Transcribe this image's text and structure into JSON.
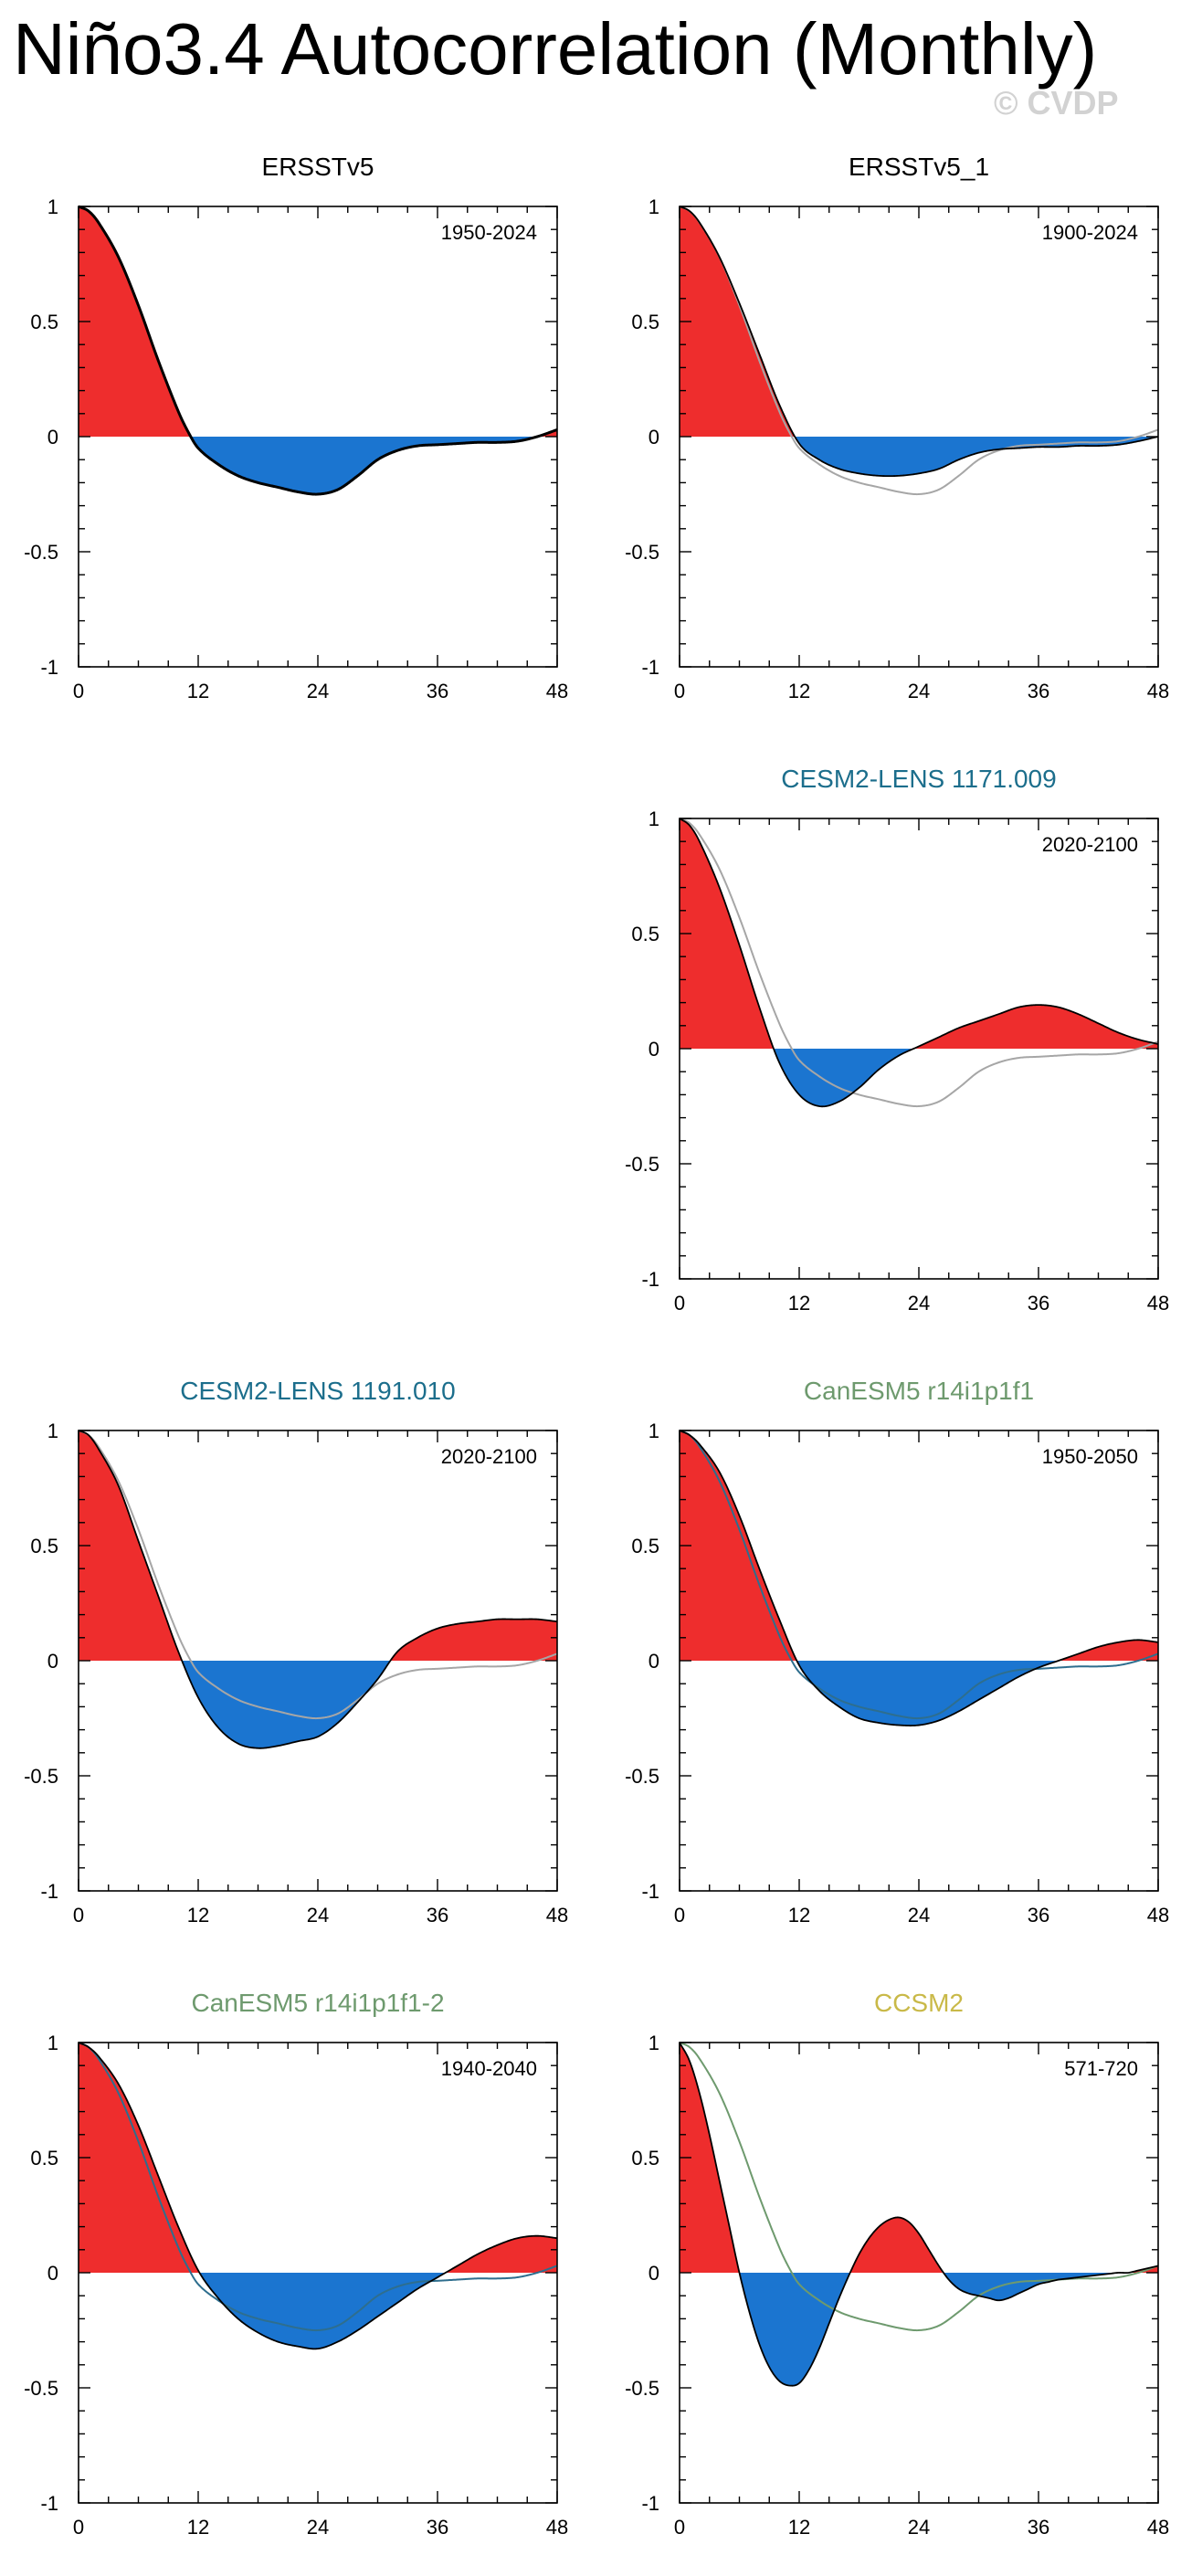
{
  "title": "Niño3.4 Autocorrelation (Monthly)",
  "watermark": "© CVDP",
  "colors": {
    "positive_fill": "#ee2d2d",
    "negative_fill": "#1b75d0",
    "reference_line": "#a6a6a6",
    "model_line": "#000000"
  },
  "chart_data": [
    {
      "type": "area",
      "title": "ERSSTv5",
      "title_color": "#000000",
      "period": "1950-2024",
      "xlabel": "",
      "ylabel": "",
      "xlim": [
        0,
        48
      ],
      "ylim": [
        -1,
        1
      ],
      "xticks": [
        "0",
        "12",
        "24",
        "36",
        "48"
      ],
      "yticks": [
        "1",
        "0.5",
        "0",
        "-0.5",
        "-1"
      ],
      "line_width": 2.5,
      "reference": null,
      "series": [
        {
          "name": "ERSSTv5",
          "x": [
            0,
            1,
            2,
            4,
            6,
            8,
            10,
            11,
            12,
            14,
            16,
            18,
            20,
            22,
            24,
            26,
            28,
            30,
            32,
            34,
            36,
            38,
            40,
            42,
            44,
            46,
            48
          ],
          "values": [
            1.0,
            0.98,
            0.93,
            0.78,
            0.57,
            0.33,
            0.11,
            0.02,
            -0.05,
            -0.12,
            -0.17,
            -0.2,
            -0.22,
            -0.24,
            -0.25,
            -0.23,
            -0.17,
            -0.1,
            -0.06,
            -0.04,
            -0.035,
            -0.03,
            -0.025,
            -0.025,
            -0.02,
            0.0,
            0.03
          ]
        }
      ]
    },
    {
      "type": "area",
      "title": "ERSSTv5_1",
      "title_color": "#000000",
      "period": "1900-2024",
      "xlabel": "",
      "ylabel": "",
      "xlim": [
        0,
        48
      ],
      "ylim": [
        -1,
        1
      ],
      "xticks": [
        "0",
        "12",
        "24",
        "36",
        "48"
      ],
      "yticks": [
        "1",
        "0.5",
        "0",
        "-0.5",
        "-1"
      ],
      "line_width": 1.5,
      "reference": {
        "name": "ERSSTv5",
        "color": "#a6a6a6"
      },
      "series": [
        {
          "name": "ERSSTv5_1",
          "x": [
            0,
            1,
            2,
            4,
            6,
            8,
            10,
            12,
            14,
            16,
            18,
            20,
            22,
            24,
            26,
            28,
            30,
            32,
            34,
            36,
            38,
            40,
            42,
            44,
            46,
            48
          ],
          "values": [
            1.0,
            0.98,
            0.93,
            0.78,
            0.58,
            0.36,
            0.14,
            -0.03,
            -0.1,
            -0.14,
            -0.16,
            -0.17,
            -0.17,
            -0.16,
            -0.14,
            -0.1,
            -0.07,
            -0.055,
            -0.05,
            -0.045,
            -0.045,
            -0.04,
            -0.04,
            -0.035,
            -0.02,
            0.0
          ]
        }
      ]
    },
    {
      "type": "area",
      "title": "CESM2-LENS 1171.009",
      "title_color": "#1c6e8c",
      "period": "2020-2100",
      "xlabel": "",
      "ylabel": "",
      "xlim": [
        0,
        48
      ],
      "ylim": [
        -1,
        1
      ],
      "xticks": [
        "0",
        "12",
        "24",
        "36",
        "48"
      ],
      "yticks": [
        "1",
        "0.5",
        "0",
        "-0.5",
        "-1"
      ],
      "line_width": 1.5,
      "reference": {
        "name": "ERSSTv5",
        "color": "#a6a6a6"
      },
      "series": [
        {
          "name": "CESM2-LENS 1171.009",
          "x": [
            0,
            1,
            2,
            4,
            6,
            8,
            10,
            12,
            14,
            16,
            18,
            20,
            22,
            24,
            26,
            28,
            30,
            32,
            34,
            36,
            38,
            40,
            42,
            44,
            46,
            48
          ],
          "values": [
            1.0,
            0.97,
            0.9,
            0.7,
            0.45,
            0.18,
            -0.06,
            -0.2,
            -0.25,
            -0.23,
            -0.17,
            -0.09,
            -0.03,
            0.01,
            0.05,
            0.09,
            0.12,
            0.15,
            0.18,
            0.19,
            0.18,
            0.15,
            0.11,
            0.07,
            0.04,
            0.02
          ]
        }
      ]
    },
    {
      "type": "area",
      "title": "CESM2-LENS 1191.010",
      "title_color": "#1c6e8c",
      "period": "2020-2100",
      "xlabel": "",
      "ylabel": "",
      "xlim": [
        0,
        48
      ],
      "ylim": [
        -1,
        1
      ],
      "xticks": [
        "0",
        "12",
        "24",
        "36",
        "48"
      ],
      "yticks": [
        "1",
        "0.5",
        "0",
        "-0.5",
        "-1"
      ],
      "line_width": 1.5,
      "reference": {
        "name": "ERSSTv5",
        "color": "#a6a6a6"
      },
      "series": [
        {
          "name": "CESM2-LENS 1191.010",
          "x": [
            0,
            1,
            2,
            4,
            6,
            8,
            10,
            12,
            14,
            16,
            18,
            20,
            22,
            24,
            26,
            28,
            30,
            32,
            34,
            36,
            38,
            40,
            42,
            44,
            46,
            48
          ],
          "values": [
            1.0,
            0.98,
            0.92,
            0.76,
            0.52,
            0.28,
            0.04,
            -0.16,
            -0.29,
            -0.36,
            -0.38,
            -0.37,
            -0.35,
            -0.33,
            -0.27,
            -0.18,
            -0.08,
            0.04,
            0.1,
            0.14,
            0.16,
            0.17,
            0.18,
            0.18,
            0.18,
            0.17
          ]
        }
      ]
    },
    {
      "type": "area",
      "title": "CanESM5 r14i1p1f1",
      "title_color": "#6e9a6e",
      "period": "1950-2050",
      "xlabel": "",
      "ylabel": "",
      "xlim": [
        0,
        48
      ],
      "ylim": [
        -1,
        1
      ],
      "xticks": [
        "0",
        "12",
        "24",
        "36",
        "48"
      ],
      "yticks": [
        "1",
        "0.5",
        "0",
        "-0.5",
        "-1"
      ],
      "line_width": 1.5,
      "reference": {
        "name": "ERSSTv5",
        "color": "#2e6e8e"
      },
      "series": [
        {
          "name": "CanESM5 r14i1p1f1",
          "x": [
            0,
            1,
            2,
            4,
            6,
            8,
            10,
            12,
            14,
            16,
            18,
            20,
            22,
            24,
            26,
            28,
            30,
            32,
            34,
            36,
            38,
            40,
            42,
            44,
            46,
            48
          ],
          "values": [
            1.0,
            0.98,
            0.94,
            0.82,
            0.63,
            0.4,
            0.18,
            -0.02,
            -0.13,
            -0.2,
            -0.25,
            -0.27,
            -0.28,
            -0.28,
            -0.26,
            -0.22,
            -0.17,
            -0.12,
            -0.07,
            -0.03,
            0.0,
            0.03,
            0.06,
            0.08,
            0.09,
            0.08
          ]
        }
      ]
    },
    {
      "type": "area",
      "title": "CanESM5 r14i1p1f1-2",
      "title_color": "#6e9a6e",
      "period": "1940-2040",
      "xlabel": "",
      "ylabel": "",
      "xlim": [
        0,
        48
      ],
      "ylim": [
        -1,
        1
      ],
      "xticks": [
        "0",
        "12",
        "24",
        "36",
        "48"
      ],
      "yticks": [
        "1",
        "0.5",
        "0",
        "-0.5",
        "-1"
      ],
      "line_width": 1.5,
      "reference": {
        "name": "ERSSTv5",
        "color": "#2e6e8e"
      },
      "series": [
        {
          "name": "CanESM5 r14i1p1f1-2",
          "x": [
            0,
            1,
            2,
            4,
            6,
            8,
            10,
            12,
            14,
            16,
            18,
            20,
            22,
            24,
            26,
            28,
            30,
            32,
            34,
            36,
            38,
            40,
            42,
            44,
            46,
            48
          ],
          "values": [
            1.0,
            0.98,
            0.94,
            0.82,
            0.64,
            0.42,
            0.2,
            0.01,
            -0.11,
            -0.2,
            -0.26,
            -0.3,
            -0.32,
            -0.33,
            -0.3,
            -0.25,
            -0.19,
            -0.13,
            -0.07,
            -0.02,
            0.03,
            0.08,
            0.12,
            0.15,
            0.16,
            0.15
          ]
        }
      ]
    },
    {
      "type": "area",
      "title": "CCSM2",
      "title_color": "#c9b948",
      "period": "571-720",
      "xlabel": "",
      "ylabel": "",
      "xlim": [
        0,
        48
      ],
      "ylim": [
        -1,
        1
      ],
      "xticks": [
        "0",
        "12",
        "24",
        "36",
        "48"
      ],
      "yticks": [
        "1",
        "0.5",
        "0",
        "-0.5",
        "-1"
      ],
      "line_width": 1.5,
      "reference": {
        "name": "ERSSTv5",
        "color": "#6e9a6e"
      },
      "series": [
        {
          "name": "CCSM2",
          "x": [
            0,
            1,
            2,
            3,
            4,
            5,
            6,
            7,
            8,
            9,
            10,
            11,
            12,
            13,
            14,
            15,
            16,
            17,
            18,
            19,
            20,
            21,
            22,
            23,
            24,
            25,
            26,
            27,
            28,
            29,
            30,
            31,
            32,
            33,
            34,
            35,
            36,
            37,
            38,
            39,
            40,
            41,
            42,
            43,
            44,
            45,
            46,
            47,
            48
          ],
          "values": [
            1.0,
            0.92,
            0.78,
            0.6,
            0.4,
            0.2,
            0.0,
            -0.17,
            -0.31,
            -0.41,
            -0.47,
            -0.49,
            -0.48,
            -0.42,
            -0.33,
            -0.22,
            -0.11,
            -0.01,
            0.08,
            0.15,
            0.2,
            0.23,
            0.24,
            0.22,
            0.17,
            0.1,
            0.03,
            -0.03,
            -0.07,
            -0.09,
            -0.1,
            -0.11,
            -0.12,
            -0.11,
            -0.09,
            -0.07,
            -0.05,
            -0.04,
            -0.03,
            -0.025,
            -0.02,
            -0.015,
            -0.01,
            -0.005,
            0.0,
            0.0,
            0.01,
            0.02,
            0.03
          ]
        }
      ]
    }
  ]
}
